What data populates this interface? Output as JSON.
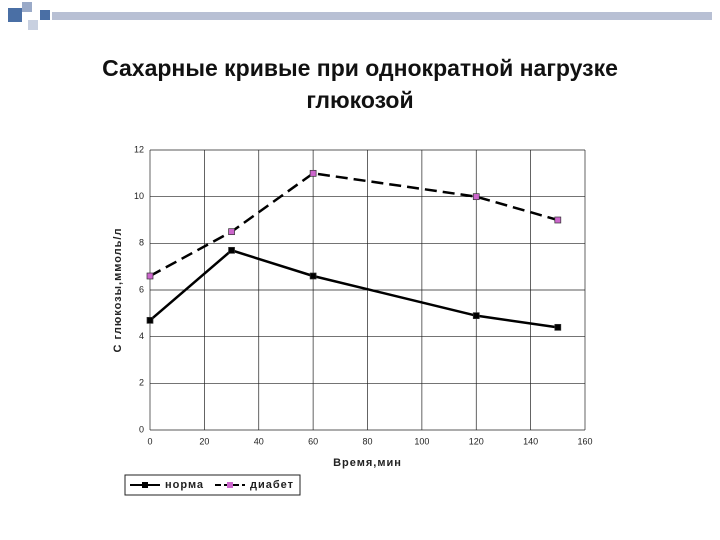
{
  "chart_data": {
    "type": "line",
    "title": "Сахарные кривые при однократной нагрузке глюкозой",
    "x_label": "Время,мин",
    "y_label": "С глюкозы,ммоль/л",
    "x": [
      0,
      30,
      60,
      120,
      150
    ],
    "series": [
      {
        "name": "норма",
        "color": "#000000",
        "marker_color": "#000000",
        "dashed": false,
        "values": [
          4.7,
          7.7,
          6.6,
          4.9,
          4.4
        ]
      },
      {
        "name": "диабет",
        "color": "#000000",
        "marker_color": "#cc66cc",
        "dashed": true,
        "values": [
          6.6,
          8.5,
          11,
          10,
          9
        ]
      }
    ],
    "xlim": [
      0,
      160
    ],
    "xticks": [
      0,
      20,
      40,
      60,
      80,
      100,
      120,
      140,
      160
    ],
    "ylim": [
      0,
      12
    ],
    "yticks": [
      0,
      2,
      4,
      6,
      8,
      10,
      12
    ],
    "grid": true,
    "legend": "bottom"
  }
}
